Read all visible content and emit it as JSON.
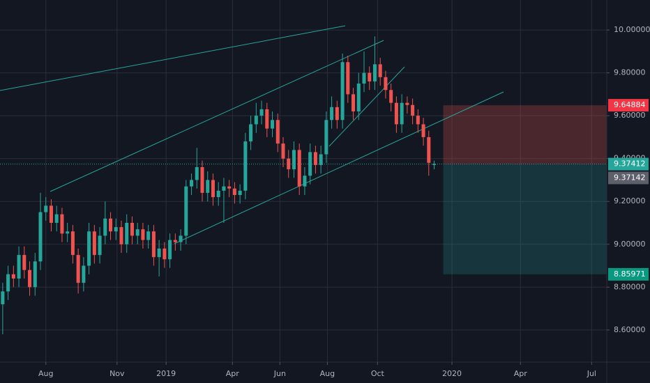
{
  "chart_data": {
    "type": "candlestick",
    "x": [
      0,
      1,
      2,
      3,
      4,
      5,
      6,
      7,
      8,
      9,
      10,
      11,
      12,
      13,
      14,
      15,
      16,
      17,
      18,
      19,
      20,
      21,
      22,
      23,
      24,
      25,
      26,
      27,
      28,
      29,
      30,
      31,
      32,
      33,
      34,
      35,
      36,
      37,
      38,
      39,
      40,
      41,
      42,
      43,
      44,
      45,
      46,
      47,
      48,
      49,
      50,
      51,
      52,
      53,
      54,
      55,
      56,
      57,
      58,
      59,
      60,
      61,
      62,
      63,
      64,
      65,
      66,
      67,
      68,
      69,
      70,
      71,
      72,
      73,
      74,
      75,
      76,
      77,
      78,
      79,
      80
    ],
    "open": [
      8.72,
      8.78,
      8.86,
      8.84,
      8.95,
      8.88,
      8.8,
      8.92,
      9.15,
      9.18,
      9.1,
      9.14,
      9.05,
      9.06,
      8.95,
      8.82,
      8.9,
      9.06,
      8.95,
      9.04,
      9.12,
      9.06,
      9.08,
      9.0,
      9.1,
      9.04,
      9.07,
      9.02,
      9.06,
      8.94,
      8.98,
      8.93,
      9.02,
      9.01,
      9.04,
      9.27,
      9.3,
      9.36,
      9.24,
      9.3,
      9.22,
      9.25,
      9.27,
      9.26,
      9.23,
      9.25,
      9.48,
      9.56,
      9.6,
      9.63,
      9.54,
      9.58,
      9.47,
      9.4,
      9.35,
      9.44,
      9.27,
      9.32,
      9.43,
      9.37,
      9.42,
      9.58,
      9.64,
      9.58,
      9.85,
      9.7,
      9.62,
      9.75,
      9.8,
      9.76,
      9.84,
      9.78,
      9.72,
      9.66,
      9.56,
      9.66,
      9.65,
      9.6,
      9.56,
      9.5,
      9.37
    ],
    "high": [
      8.82,
      8.9,
      8.9,
      8.99,
      8.99,
      8.92,
      8.96,
      9.24,
      9.22,
      9.21,
      9.18,
      9.17,
      9.1,
      9.09,
      8.98,
      8.94,
      9.1,
      9.09,
      9.08,
      9.2,
      9.15,
      9.12,
      9.11,
      9.14,
      9.13,
      9.1,
      9.1,
      9.09,
      9.09,
      9.02,
      9.01,
      9.05,
      9.05,
      9.07,
      9.3,
      9.33,
      9.45,
      9.39,
      9.34,
      9.33,
      9.29,
      9.31,
      9.3,
      9.29,
      9.28,
      9.52,
      9.6,
      9.66,
      9.67,
      9.66,
      9.62,
      9.61,
      9.5,
      9.44,
      9.48,
      9.47,
      9.36,
      9.47,
      9.46,
      9.46,
      9.62,
      9.69,
      9.67,
      9.89,
      9.88,
      9.73,
      9.8,
      9.9,
      9.83,
      9.97,
      9.87,
      9.81,
      9.75,
      9.69,
      9.7,
      9.69,
      9.68,
      9.63,
      9.59,
      9.53,
      9.39
    ],
    "low": [
      8.58,
      8.74,
      8.8,
      8.8,
      8.84,
      8.76,
      8.76,
      8.88,
      9.11,
      9.06,
      9.06,
      9.01,
      9.01,
      8.91,
      8.77,
      8.78,
      8.86,
      8.91,
      8.91,
      9.0,
      9.02,
      9.02,
      8.96,
      8.96,
      9.0,
      9.0,
      8.98,
      8.98,
      8.9,
      8.85,
      8.89,
      8.89,
      8.97,
      8.97,
      9.0,
      9.23,
      9.26,
      9.2,
      9.2,
      9.18,
      9.18,
      9.1,
      9.22,
      9.19,
      9.19,
      9.21,
      9.44,
      9.52,
      9.56,
      9.5,
      9.5,
      9.43,
      9.36,
      9.31,
      9.31,
      9.23,
      9.23,
      9.28,
      9.33,
      9.33,
      9.38,
      9.54,
      9.54,
      9.54,
      9.66,
      9.58,
      9.58,
      9.71,
      9.72,
      9.72,
      9.74,
      9.68,
      9.62,
      9.52,
      9.52,
      9.61,
      9.56,
      9.52,
      9.46,
      9.32,
      9.35
    ],
    "close": [
      8.78,
      8.86,
      8.84,
      8.95,
      8.88,
      8.8,
      8.92,
      9.15,
      9.18,
      9.1,
      9.14,
      9.05,
      9.06,
      8.95,
      8.82,
      8.9,
      9.06,
      8.95,
      9.04,
      9.12,
      9.06,
      9.08,
      9.0,
      9.1,
      9.04,
      9.07,
      9.02,
      9.06,
      8.94,
      8.98,
      8.93,
      9.02,
      9.01,
      9.04,
      9.27,
      9.3,
      9.36,
      9.24,
      9.3,
      9.22,
      9.25,
      9.27,
      9.26,
      9.23,
      9.25,
      9.48,
      9.56,
      9.6,
      9.63,
      9.54,
      9.58,
      9.47,
      9.4,
      9.35,
      9.44,
      9.27,
      9.32,
      9.43,
      9.37,
      9.42,
      9.58,
      9.64,
      9.58,
      9.85,
      9.7,
      9.62,
      9.75,
      9.8,
      9.76,
      9.84,
      9.78,
      9.72,
      9.66,
      9.56,
      9.66,
      9.65,
      9.6,
      9.56,
      9.5,
      9.38,
      9.375
    ],
    "up_color": "#26a69a",
    "down_color": "#ef5350",
    "xlim": [
      -0.5,
      112
    ],
    "ylim": [
      8.45,
      10.14
    ],
    "xticks": [
      {
        "value": 8,
        "label": "Aug"
      },
      {
        "value": 21.2,
        "label": "Nov"
      },
      {
        "value": 30.3,
        "label": "2019"
      },
      {
        "value": 42.6,
        "label": "Apr"
      },
      {
        "value": 51.4,
        "label": "Jun"
      },
      {
        "value": 60.2,
        "label": "Aug"
      },
      {
        "value": 69.5,
        "label": "Oct"
      },
      {
        "value": 83.3,
        "label": "2020"
      },
      {
        "value": 96,
        "label": "Apr"
      },
      {
        "value": 109.2,
        "label": "Jul"
      }
    ],
    "yticks": [
      {
        "value": 8.6,
        "label": "8.60000"
      },
      {
        "value": 8.8,
        "label": "8.80000"
      },
      {
        "value": 9.0,
        "label": "9.00000"
      },
      {
        "value": 9.2,
        "label": "9.20000"
      },
      {
        "value": 9.4,
        "label": "9.40000"
      },
      {
        "value": 9.6,
        "label": "9.60000"
      },
      {
        "value": 9.8,
        "label": "9.80000"
      },
      {
        "value": 10.0,
        "label": "10.00000"
      }
    ],
    "grid": true,
    "position": {
      "stop": 9.64884,
      "entry": 9.37412,
      "target": 8.85971
    },
    "last_price": 9.37142
  }
}
